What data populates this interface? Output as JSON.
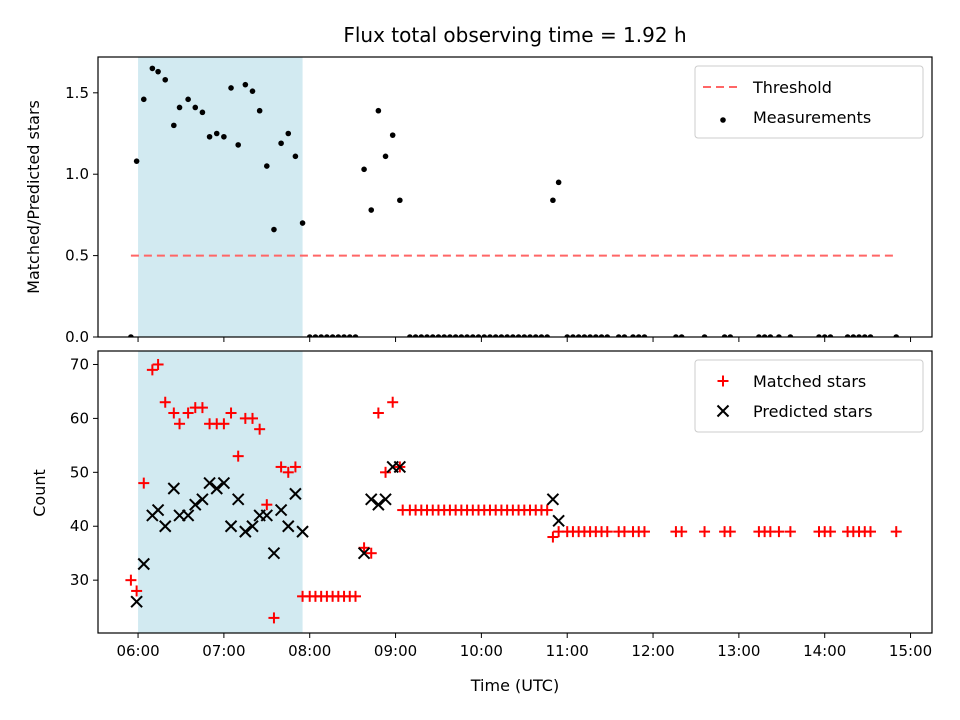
{
  "chart_data": [
    {
      "type": "scatter",
      "title": "Flux total observing time = 1.92 h",
      "xlabel": "",
      "ylabel": "Matched/Predicted stars",
      "xlim": [
        "05:32",
        "15:15"
      ],
      "ylim": [
        0,
        1.72
      ],
      "yticks": [
        0.0,
        0.5,
        1.0,
        1.5
      ],
      "ytick_labels": [
        "0.0",
        "0.5",
        "1.0",
        "1.5"
      ],
      "xtick_labels": [
        "06:00",
        "07:00",
        "08:00",
        "09:00",
        "10:00",
        "11:00",
        "12:00",
        "13:00",
        "14:00",
        "15:00"
      ],
      "legend_position": "top-right",
      "highlight_span": {
        "start": "06:00",
        "end": "07:55",
        "color": "#add8e6"
      },
      "threshold": {
        "name": "Threshold",
        "value": 0.5,
        "x_start": "05:55",
        "x_end": "14:50",
        "color": "#ff6666",
        "style": "dashed"
      },
      "series": [
        {
          "name": "Measurements",
          "marker": "dot",
          "color": "#000000",
          "points": [
            [
              "05:55",
              0.0
            ],
            [
              "05:59",
              1.08
            ],
            [
              "06:04",
              1.46
            ],
            [
              "06:10",
              1.65
            ],
            [
              "06:14",
              1.63
            ],
            [
              "06:19",
              1.58
            ],
            [
              "06:25",
              1.3
            ],
            [
              "06:29",
              1.41
            ],
            [
              "06:35",
              1.46
            ],
            [
              "06:40",
              1.41
            ],
            [
              "06:45",
              1.38
            ],
            [
              "06:50",
              1.23
            ],
            [
              "06:55",
              1.25
            ],
            [
              "07:00",
              1.23
            ],
            [
              "07:05",
              1.53
            ],
            [
              "07:10",
              1.18
            ],
            [
              "07:15",
              1.55
            ],
            [
              "07:20",
              1.51
            ],
            [
              "07:25",
              1.39
            ],
            [
              "07:30",
              1.05
            ],
            [
              "07:35",
              0.66
            ],
            [
              "07:40",
              1.19
            ],
            [
              "07:45",
              1.25
            ],
            [
              "07:50",
              1.11
            ],
            [
              "07:55",
              0.7
            ],
            [
              "08:00",
              0.0
            ],
            [
              "08:04",
              0.0
            ],
            [
              "08:08",
              0.0
            ],
            [
              "08:12",
              0.0
            ],
            [
              "08:16",
              0.0
            ],
            [
              "08:20",
              0.0
            ],
            [
              "08:24",
              0.0
            ],
            [
              "08:28",
              0.0
            ],
            [
              "08:32",
              0.0
            ],
            [
              "08:38",
              1.03
            ],
            [
              "08:43",
              0.78
            ],
            [
              "08:48",
              1.39
            ],
            [
              "08:53",
              1.11
            ],
            [
              "08:58",
              1.24
            ],
            [
              "09:03",
              0.84
            ],
            [
              "09:10",
              0.0
            ],
            [
              "09:14",
              0.0
            ],
            [
              "09:18",
              0.0
            ],
            [
              "09:22",
              0.0
            ],
            [
              "09:26",
              0.0
            ],
            [
              "09:30",
              0.0
            ],
            [
              "09:34",
              0.0
            ],
            [
              "09:38",
              0.0
            ],
            [
              "09:42",
              0.0
            ],
            [
              "09:46",
              0.0
            ],
            [
              "09:50",
              0.0
            ],
            [
              "09:54",
              0.0
            ],
            [
              "09:58",
              0.0
            ],
            [
              "10:02",
              0.0
            ],
            [
              "10:06",
              0.0
            ],
            [
              "10:10",
              0.0
            ],
            [
              "10:14",
              0.0
            ],
            [
              "10:18",
              0.0
            ],
            [
              "10:22",
              0.0
            ],
            [
              "10:26",
              0.0
            ],
            [
              "10:30",
              0.0
            ],
            [
              "10:34",
              0.0
            ],
            [
              "10:38",
              0.0
            ],
            [
              "10:42",
              0.0
            ],
            [
              "10:46",
              0.0
            ],
            [
              "10:50",
              0.84
            ],
            [
              "10:54",
              0.95
            ],
            [
              "11:00",
              0.0
            ],
            [
              "11:04",
              0.0
            ],
            [
              "11:08",
              0.0
            ],
            [
              "11:12",
              0.0
            ],
            [
              "11:16",
              0.0
            ],
            [
              "11:20",
              0.0
            ],
            [
              "11:24",
              0.0
            ],
            [
              "11:28",
              0.0
            ],
            [
              "11:36",
              0.0
            ],
            [
              "11:40",
              0.0
            ],
            [
              "11:46",
              0.0
            ],
            [
              "11:50",
              0.0
            ],
            [
              "11:54",
              0.0
            ],
            [
              "12:16",
              0.0
            ],
            [
              "12:20",
              0.0
            ],
            [
              "12:36",
              0.0
            ],
            [
              "12:50",
              0.0
            ],
            [
              "12:54",
              0.0
            ],
            [
              "13:14",
              0.0
            ],
            [
              "13:18",
              0.0
            ],
            [
              "13:22",
              0.0
            ],
            [
              "13:28",
              0.0
            ],
            [
              "13:36",
              0.0
            ],
            [
              "13:56",
              0.0
            ],
            [
              "14:00",
              0.0
            ],
            [
              "14:04",
              0.0
            ],
            [
              "14:16",
              0.0
            ],
            [
              "14:20",
              0.0
            ],
            [
              "14:24",
              0.0
            ],
            [
              "14:28",
              0.0
            ],
            [
              "14:32",
              0.0
            ],
            [
              "14:50",
              0.0
            ]
          ]
        }
      ]
    },
    {
      "type": "scatter",
      "title": "",
      "xlabel": "Time (UTC)",
      "ylabel": "Count",
      "xlim": [
        "05:32",
        "15:15"
      ],
      "ylim": [
        20.2,
        72.5
      ],
      "yticks": [
        30,
        40,
        50,
        60,
        70
      ],
      "ytick_labels": [
        "30",
        "40",
        "50",
        "60",
        "70"
      ],
      "xtick_labels": [
        "06:00",
        "07:00",
        "08:00",
        "09:00",
        "10:00",
        "11:00",
        "12:00",
        "13:00",
        "14:00",
        "15:00"
      ],
      "legend_position": "top-right",
      "highlight_span": {
        "start": "06:00",
        "end": "07:55",
        "color": "#add8e6"
      },
      "series": [
        {
          "name": "Matched stars",
          "marker": "plus",
          "color": "#ff0000",
          "points": [
            [
              "05:55",
              30
            ],
            [
              "05:59",
              28
            ],
            [
              "06:04",
              48
            ],
            [
              "06:10",
              69
            ],
            [
              "06:14",
              70
            ],
            [
              "06:19",
              63
            ],
            [
              "06:25",
              61
            ],
            [
              "06:29",
              59
            ],
            [
              "06:35",
              61
            ],
            [
              "06:40",
              62
            ],
            [
              "06:45",
              62
            ],
            [
              "06:50",
              59
            ],
            [
              "06:55",
              59
            ],
            [
              "07:00",
              59
            ],
            [
              "07:05",
              61
            ],
            [
              "07:10",
              53
            ],
            [
              "07:15",
              60
            ],
            [
              "07:20",
              60
            ],
            [
              "07:25",
              58
            ],
            [
              "07:30",
              44
            ],
            [
              "07:35",
              23
            ],
            [
              "07:40",
              51
            ],
            [
              "07:45",
              50
            ],
            [
              "07:50",
              51
            ],
            [
              "07:55",
              27
            ],
            [
              "08:00",
              27
            ],
            [
              "08:04",
              27
            ],
            [
              "08:08",
              27
            ],
            [
              "08:12",
              27
            ],
            [
              "08:16",
              27
            ],
            [
              "08:20",
              27
            ],
            [
              "08:24",
              27
            ],
            [
              "08:28",
              27
            ],
            [
              "08:32",
              27
            ],
            [
              "08:38",
              36
            ],
            [
              "08:43",
              35
            ],
            [
              "08:48",
              61
            ],
            [
              "08:53",
              50
            ],
            [
              "08:58",
              63
            ],
            [
              "09:03",
              51
            ],
            [
              "09:05",
              43
            ],
            [
              "09:10",
              43
            ],
            [
              "09:14",
              43
            ],
            [
              "09:18",
              43
            ],
            [
              "09:22",
              43
            ],
            [
              "09:26",
              43
            ],
            [
              "09:30",
              43
            ],
            [
              "09:34",
              43
            ],
            [
              "09:38",
              43
            ],
            [
              "09:42",
              43
            ],
            [
              "09:46",
              43
            ],
            [
              "09:50",
              43
            ],
            [
              "09:54",
              43
            ],
            [
              "09:58",
              43
            ],
            [
              "10:02",
              43
            ],
            [
              "10:06",
              43
            ],
            [
              "10:10",
              43
            ],
            [
              "10:14",
              43
            ],
            [
              "10:18",
              43
            ],
            [
              "10:22",
              43
            ],
            [
              "10:26",
              43
            ],
            [
              "10:30",
              43
            ],
            [
              "10:34",
              43
            ],
            [
              "10:38",
              43
            ],
            [
              "10:42",
              43
            ],
            [
              "10:46",
              43
            ],
            [
              "10:50",
              38
            ],
            [
              "10:54",
              39
            ],
            [
              "11:00",
              39
            ],
            [
              "11:04",
              39
            ],
            [
              "11:08",
              39
            ],
            [
              "11:12",
              39
            ],
            [
              "11:16",
              39
            ],
            [
              "11:20",
              39
            ],
            [
              "11:24",
              39
            ],
            [
              "11:28",
              39
            ],
            [
              "11:36",
              39
            ],
            [
              "11:40",
              39
            ],
            [
              "11:46",
              39
            ],
            [
              "11:50",
              39
            ],
            [
              "11:54",
              39
            ],
            [
              "12:16",
              39
            ],
            [
              "12:20",
              39
            ],
            [
              "12:36",
              39
            ],
            [
              "12:50",
              39
            ],
            [
              "12:54",
              39
            ],
            [
              "13:14",
              39
            ],
            [
              "13:18",
              39
            ],
            [
              "13:22",
              39
            ],
            [
              "13:28",
              39
            ],
            [
              "13:36",
              39
            ],
            [
              "13:56",
              39
            ],
            [
              "14:00",
              39
            ],
            [
              "14:04",
              39
            ],
            [
              "14:16",
              39
            ],
            [
              "14:20",
              39
            ],
            [
              "14:24",
              39
            ],
            [
              "14:28",
              39
            ],
            [
              "14:32",
              39
            ],
            [
              "14:50",
              39
            ]
          ]
        },
        {
          "name": "Predicted stars",
          "marker": "x",
          "color": "#000000",
          "points": [
            [
              "05:59",
              26
            ],
            [
              "06:04",
              33
            ],
            [
              "06:10",
              42
            ],
            [
              "06:14",
              43
            ],
            [
              "06:19",
              40
            ],
            [
              "06:25",
              47
            ],
            [
              "06:29",
              42
            ],
            [
              "06:35",
              42
            ],
            [
              "06:40",
              44
            ],
            [
              "06:45",
              45
            ],
            [
              "06:50",
              48
            ],
            [
              "06:55",
              47
            ],
            [
              "07:00",
              48
            ],
            [
              "07:05",
              40
            ],
            [
              "07:10",
              45
            ],
            [
              "07:15",
              39
            ],
            [
              "07:20",
              40
            ],
            [
              "07:25",
              42
            ],
            [
              "07:30",
              42
            ],
            [
              "07:35",
              35
            ],
            [
              "07:40",
              43
            ],
            [
              "07:45",
              40
            ],
            [
              "07:50",
              46
            ],
            [
              "07:55",
              39
            ],
            [
              "08:38",
              35
            ],
            [
              "08:43",
              45
            ],
            [
              "08:48",
              44
            ],
            [
              "08:53",
              45
            ],
            [
              "08:58",
              51
            ],
            [
              "09:03",
              51
            ],
            [
              "10:50",
              45
            ],
            [
              "10:54",
              41
            ]
          ]
        }
      ]
    }
  ]
}
